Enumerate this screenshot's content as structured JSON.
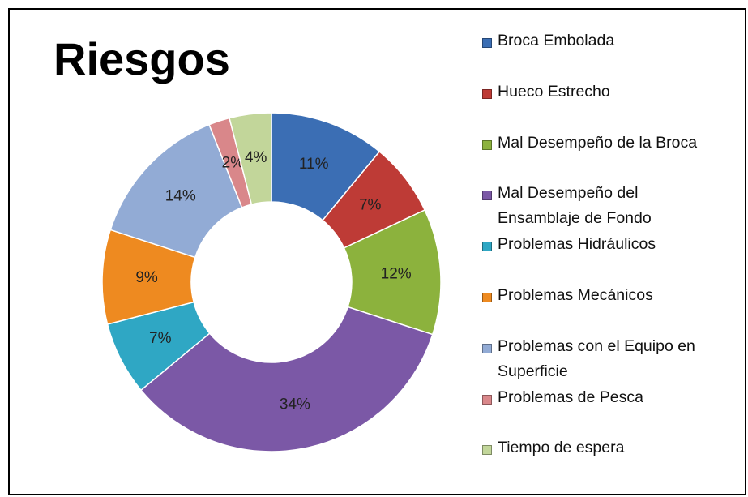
{
  "chart_data": {
    "type": "donut",
    "title": "Riesgos",
    "categories": [
      "Broca Embolada",
      "Hueco Estrecho",
      "Mal Desempeño de la Broca",
      "Mal Desempeño del Ensamblaje de Fondo",
      "Problemas Hidráulicos",
      "Problemas Mecánicos",
      "Problemas con el Equipo en Superficie",
      "Problemas de Pesca",
      "Tiempo de espera"
    ],
    "values": [
      11,
      7,
      12,
      34,
      7,
      9,
      14,
      2,
      4
    ],
    "value_labels": [
      "11%",
      "7%",
      "12%",
      "34%",
      "7%",
      "9%",
      "14%",
      "2%",
      "4%"
    ],
    "colors": [
      "#3b6eb4",
      "#be3b36",
      "#8cb23d",
      "#7b58a6",
      "#2fa7c4",
      "#ee8a20",
      "#92abd5",
      "#d9878a",
      "#c2d69a"
    ],
    "legend": "right"
  }
}
